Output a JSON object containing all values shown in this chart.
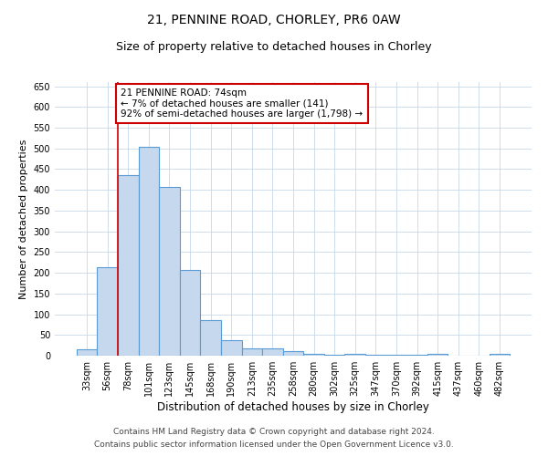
{
  "title1": "21, PENNINE ROAD, CHORLEY, PR6 0AW",
  "title2": "Size of property relative to detached houses in Chorley",
  "xlabel": "Distribution of detached houses by size in Chorley",
  "ylabel": "Number of detached properties",
  "categories": [
    "33sqm",
    "56sqm",
    "78sqm",
    "101sqm",
    "123sqm",
    "145sqm",
    "168sqm",
    "190sqm",
    "213sqm",
    "235sqm",
    "258sqm",
    "280sqm",
    "302sqm",
    "325sqm",
    "347sqm",
    "370sqm",
    "392sqm",
    "415sqm",
    "437sqm",
    "460sqm",
    "482sqm"
  ],
  "values": [
    15,
    213,
    435,
    503,
    408,
    207,
    85,
    38,
    18,
    18,
    10,
    5,
    3,
    5,
    3,
    3,
    3,
    5,
    0,
    0,
    5
  ],
  "bar_color": "#c5d8ed",
  "bar_edge_color": "#5b9bd5",
  "bar_linewidth": 0.8,
  "vline_x_index": 2,
  "vline_color": "#cc0000",
  "annotation_line1": "21 PENNINE ROAD: 74sqm",
  "annotation_line2": "← 7% of detached houses are smaller (141)",
  "annotation_line3": "92% of semi-detached houses are larger (1,798) →",
  "annotation_box_color": "#ffffff",
  "annotation_box_edge_color": "#cc0000",
  "ylim": [
    0,
    660
  ],
  "yticks": [
    0,
    50,
    100,
    150,
    200,
    250,
    300,
    350,
    400,
    450,
    500,
    550,
    600,
    650
  ],
  "grid_color": "#c8d8e8",
  "bg_color": "#ffffff",
  "footer1": "Contains HM Land Registry data © Crown copyright and database right 2024.",
  "footer2": "Contains public sector information licensed under the Open Government Licence v3.0.",
  "title1_fontsize": 10,
  "title2_fontsize": 9,
  "xlabel_fontsize": 8.5,
  "ylabel_fontsize": 8,
  "tick_fontsize": 7,
  "footer_fontsize": 6.5,
  "annotation_fontsize": 7.5
}
